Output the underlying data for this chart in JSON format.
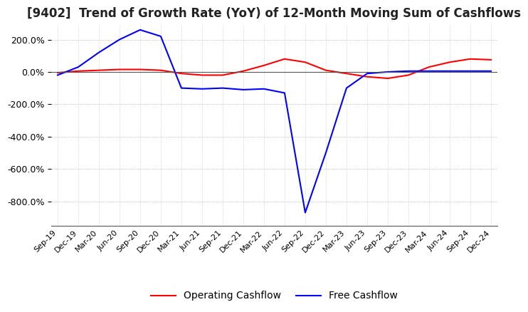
{
  "title": "[9402]  Trend of Growth Rate (YoY) of 12-Month Moving Sum of Cashflows",
  "title_fontsize": 12,
  "background_color": "#ffffff",
  "x_labels": [
    "Sep-19",
    "Dec-19",
    "Mar-20",
    "Jun-20",
    "Sep-20",
    "Dec-20",
    "Mar-21",
    "Jun-21",
    "Sep-21",
    "Dec-21",
    "Mar-22",
    "Jun-22",
    "Sep-22",
    "Dec-22",
    "Mar-23",
    "Jun-23",
    "Sep-23",
    "Dec-23",
    "Mar-24",
    "Jun-24",
    "Sep-24",
    "Dec-24"
  ],
  "operating_cashflow": [
    -5,
    5,
    10,
    15,
    15,
    10,
    -10,
    -20,
    -20,
    5,
    40,
    80,
    60,
    10,
    -10,
    -30,
    -40,
    -20,
    30,
    60,
    80,
    75
  ],
  "free_cashflow": [
    -20,
    30,
    120,
    200,
    260,
    220,
    -100,
    -105,
    -100,
    -110,
    -105,
    -130,
    -870,
    -500,
    -100,
    -10,
    0,
    5,
    5,
    5,
    5,
    5
  ],
  "operating_color": "#ff0000",
  "free_color": "#0000ff",
  "ylim": [
    -950,
    290
  ],
  "yticks": [
    -800,
    -600,
    -400,
    -200,
    0,
    200
  ],
  "legend_labels": [
    "Operating Cashflow",
    "Free Cashflow"
  ],
  "xlabel_fontsize": 8,
  "tick_fontsize": 9,
  "line_width": 1.5
}
